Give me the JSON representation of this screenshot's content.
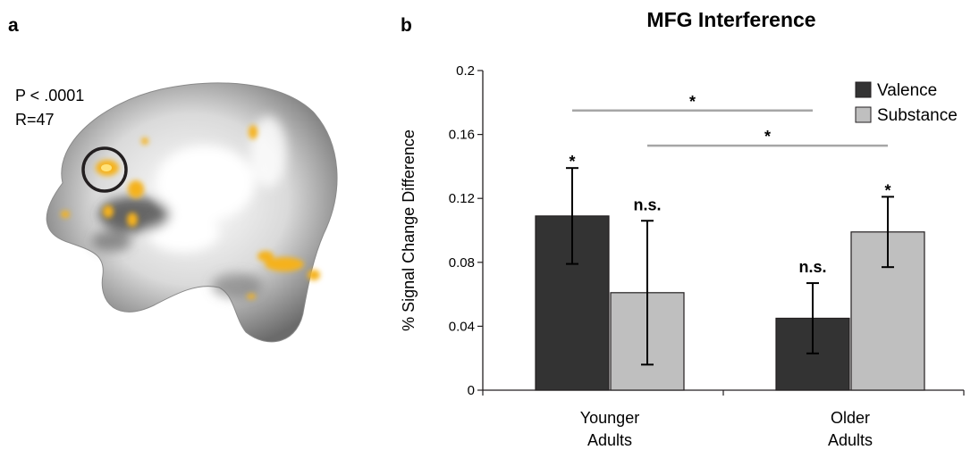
{
  "panel_a": {
    "label": "a",
    "threshold_text": "P < .0001",
    "region_text": "R=47"
  },
  "panel_b": {
    "label": "b"
  },
  "colors": {
    "valence": "#333333",
    "substance": "#bfbfbf",
    "activation": "#f5b21c",
    "significance_line": "#a6a6a6"
  },
  "chart_data": {
    "type": "bar",
    "title": "MFG Interference",
    "xlabel": "",
    "ylabel": "% Signal Change Difference",
    "ylim": [
      0,
      0.2
    ],
    "yticks": [
      0,
      0.04,
      0.08,
      0.12,
      0.16,
      0.2
    ],
    "ytick_labels": [
      "0",
      "0.04",
      "0.08",
      "0.12",
      "0.16",
      "0.2"
    ],
    "categories": [
      [
        "Younger",
        "Adults"
      ],
      [
        "Older",
        "Adults"
      ]
    ],
    "legend_position": "top-right",
    "grid": false,
    "series": [
      {
        "name": "Valence",
        "color": "#333333",
        "values": [
          0.109,
          0.045
        ],
        "errors": [
          0.03,
          0.022
        ],
        "markers": [
          "*",
          "n.s."
        ]
      },
      {
        "name": "Substance",
        "color": "#bfbfbf",
        "values": [
          0.061,
          0.099
        ],
        "errors": [
          0.045,
          0.022
        ],
        "markers": [
          "n.s.",
          "*"
        ]
      }
    ],
    "comparisons": [
      {
        "from": [
          0,
          0
        ],
        "to": [
          1,
          0
        ],
        "y": 0.175,
        "label": "*"
      },
      {
        "from": [
          0,
          1
        ],
        "to": [
          1,
          1
        ],
        "y": 0.153,
        "label": "*"
      }
    ]
  }
}
